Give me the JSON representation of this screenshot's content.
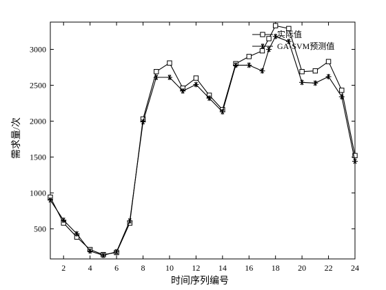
{
  "chart_data": {
    "type": "line",
    "title": "",
    "xlabel": "时间序列编号",
    "ylabel": "需求量/次",
    "xlim": [
      1,
      24
    ],
    "ylim": [
      80,
      3380
    ],
    "xticks": [
      2,
      4,
      6,
      8,
      10,
      12,
      14,
      16,
      18,
      20,
      22,
      24
    ],
    "yticks": [
      500,
      1000,
      1500,
      2000,
      2500,
      3000
    ],
    "grid": false,
    "legend_position": "top-right",
    "x": [
      1,
      2,
      3,
      4,
      5,
      6,
      7,
      8,
      9,
      10,
      11,
      12,
      13,
      14,
      15,
      16,
      17,
      17.5,
      18,
      19,
      20,
      21,
      22,
      23,
      24
    ],
    "series": [
      {
        "name": "实际值",
        "marker": "square",
        "values": [
          940,
          580,
          385,
          210,
          140,
          170,
          580,
          2030,
          2690,
          2810,
          2460,
          2600,
          2360,
          2160,
          2800,
          2900,
          2980,
          3150,
          3330,
          3290,
          2690,
          2700,
          2830,
          2430,
          1520
        ]
      },
      {
        "name": "GA-SVM预测值",
        "marker": "star",
        "values": [
          900,
          620,
          430,
          190,
          130,
          180,
          610,
          1990,
          2610,
          2610,
          2420,
          2510,
          2320,
          2130,
          2780,
          2780,
          2700,
          3000,
          3180,
          3110,
          2540,
          2530,
          2620,
          2340,
          1440
        ]
      }
    ]
  }
}
